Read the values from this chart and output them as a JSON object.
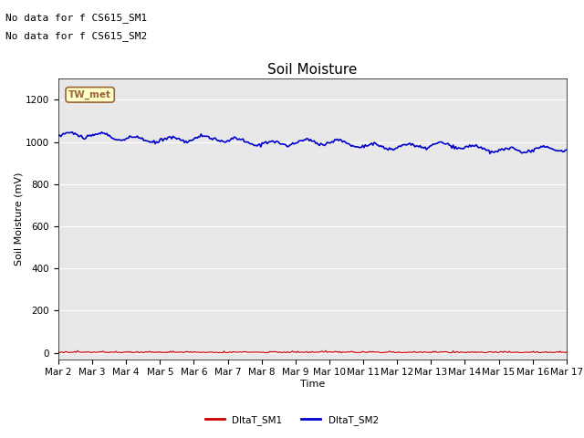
{
  "title": "Soil Moisture",
  "xlabel": "Time",
  "ylabel": "Soil Moisture (mV)",
  "ylim": [
    -30,
    1300
  ],
  "yticks": [
    0,
    200,
    400,
    600,
    800,
    1000,
    1200
  ],
  "background_color": "#e8e8e8",
  "figure_bg": "#ffffff",
  "text_annotations": [
    "No data for f CS615_SM1",
    "No data for f CS615_SM2"
  ],
  "legend_box_label": "TW_met",
  "legend_box_color": "#ffffcc",
  "legend_box_edge": "#996633",
  "sm1_color": "#cc0000",
  "sm2_color": "#0000cc",
  "sm1_label": "DltaT_SM1",
  "sm2_label": "DltaT_SM2",
  "title_fontsize": 11,
  "axis_fontsize": 8,
  "tick_fontsize": 7.5,
  "note_fontsize": 8
}
